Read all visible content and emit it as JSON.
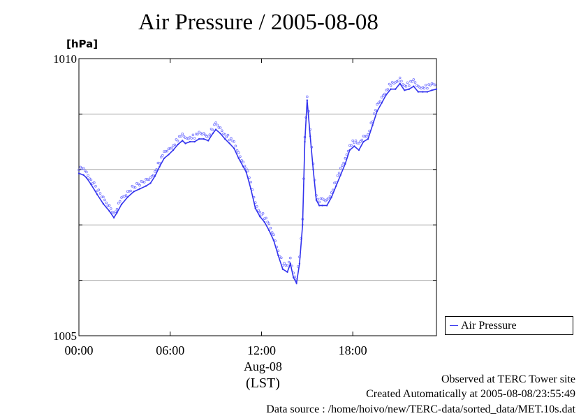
{
  "chart_data": {
    "type": "line",
    "title": "Air Pressure / 2005-08-08",
    "ylabel": "[hPa]",
    "xlabel_date": "Aug-08",
    "xlabel_tz": "(LST)",
    "ylim": [
      1005,
      1010
    ],
    "xlim": [
      0,
      23.5
    ],
    "yticks": [
      {
        "value": 1005,
        "label": "1005"
      },
      {
        "value": 1006,
        "label": ""
      },
      {
        "value": 1007,
        "label": ""
      },
      {
        "value": 1008,
        "label": ""
      },
      {
        "value": 1009,
        "label": ""
      },
      {
        "value": 1010,
        "label": "1010"
      }
    ],
    "xticks": [
      {
        "value": 0,
        "label": "00:00"
      },
      {
        "value": 6,
        "label": "06:00"
      },
      {
        "value": 12,
        "label": "12:00"
      },
      {
        "value": 18,
        "label": "18:00"
      }
    ],
    "grid": true,
    "legend_position": "right",
    "series": [
      {
        "name": "Air Pressure",
        "color": "#3333ee",
        "x": [
          0,
          0.3,
          0.5,
          0.8,
          1.2,
          1.6,
          2.0,
          2.3,
          2.5,
          2.8,
          3.2,
          3.6,
          4.0,
          4.4,
          4.7,
          5.0,
          5.3,
          5.6,
          5.9,
          6.2,
          6.5,
          6.8,
          7.0,
          7.3,
          7.6,
          7.9,
          8.2,
          8.5,
          8.8,
          9.0,
          9.3,
          9.6,
          9.9,
          10.2,
          10.5,
          10.8,
          11.0,
          11.3,
          11.6,
          11.9,
          12.2,
          12.5,
          12.8,
          13.1,
          13.4,
          13.7,
          13.9,
          14.1,
          14.3,
          14.5,
          14.7,
          14.85,
          15.0,
          15.2,
          15.4,
          15.6,
          15.8,
          16.0,
          16.3,
          16.6,
          16.9,
          17.2,
          17.5,
          17.8,
          18.1,
          18.4,
          18.7,
          19.0,
          19.3,
          19.6,
          19.9,
          20.2,
          20.5,
          20.8,
          21.1,
          21.4,
          21.7,
          22.0,
          22.3,
          22.6,
          22.9,
          23.2,
          23.5
        ],
        "values": [
          1007.93,
          1007.9,
          1007.85,
          1007.73,
          1007.55,
          1007.38,
          1007.25,
          1007.13,
          1007.22,
          1007.37,
          1007.5,
          1007.6,
          1007.65,
          1007.7,
          1007.75,
          1007.88,
          1008.05,
          1008.2,
          1008.27,
          1008.35,
          1008.45,
          1008.52,
          1008.47,
          1008.5,
          1008.5,
          1008.55,
          1008.55,
          1008.52,
          1008.65,
          1008.72,
          1008.65,
          1008.55,
          1008.47,
          1008.38,
          1008.2,
          1008.05,
          1007.95,
          1007.65,
          1007.3,
          1007.15,
          1007.05,
          1006.9,
          1006.72,
          1006.45,
          1006.2,
          1006.15,
          1006.3,
          1006.05,
          1005.95,
          1006.3,
          1007.0,
          1008.5,
          1009.25,
          1008.6,
          1008.0,
          1007.45,
          1007.35,
          1007.35,
          1007.35,
          1007.5,
          1007.7,
          1007.9,
          1008.1,
          1008.35,
          1008.42,
          1008.35,
          1008.5,
          1008.55,
          1008.8,
          1009.05,
          1009.2,
          1009.35,
          1009.45,
          1009.45,
          1009.55,
          1009.43,
          1009.45,
          1009.5,
          1009.4,
          1009.4,
          1009.4,
          1009.43,
          1009.45
        ]
      }
    ]
  },
  "footer": {
    "observed": "Observed at TERC Tower site",
    "created": "Created Automatically at 2005-08-08/23:55:49",
    "source": "Data source : /home/hoivo/new/TERC-data/sorted_data/MET.10s.dat"
  }
}
